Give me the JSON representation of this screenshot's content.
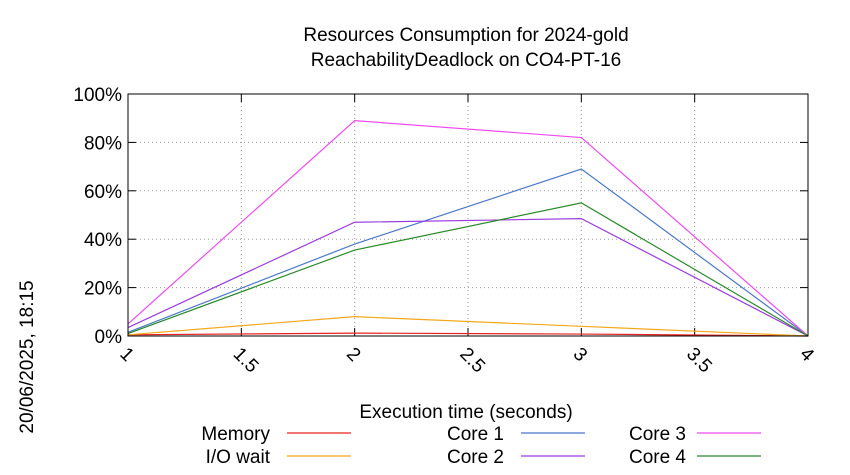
{
  "chart_data": {
    "type": "line",
    "title": "Resources Consumption for 2024-gold",
    "subtitle": "ReachabilityDeadlock on CO4-PT-16",
    "xlabel": "Execution time (seconds)",
    "ylabel": "",
    "side_label": "20/06/2025, 18:15",
    "xlim": [
      1,
      4
    ],
    "ylim": [
      0,
      100
    ],
    "x_ticks": [
      "1",
      "1.5",
      "2",
      "2.5",
      "3",
      "3.5",
      "4"
    ],
    "y_ticks": [
      "0%",
      "20%",
      "40%",
      "60%",
      "80%",
      "100%"
    ],
    "grid": true,
    "legend_position": "bottom",
    "x": [
      1,
      2,
      3,
      4
    ],
    "series": [
      {
        "name": "Memory",
        "color": "#e8231f",
        "values": [
          0.5,
          1.2,
          0.8,
          0
        ]
      },
      {
        "name": "I/O wait",
        "color": "#f4a81c",
        "values": [
          0.5,
          8,
          4,
          0
        ]
      },
      {
        "name": "Core 1",
        "color": "#4a78c8",
        "values": [
          1.5,
          38,
          69,
          0
        ]
      },
      {
        "name": "Core 2",
        "color": "#9b3ce0",
        "values": [
          3.5,
          47,
          48.5,
          0
        ]
      },
      {
        "name": "Core 3",
        "color": "#ee4cf0",
        "values": [
          5,
          89,
          82,
          0
        ]
      },
      {
        "name": "Core 4",
        "color": "#2a8a2a",
        "values": [
          1,
          35.5,
          55,
          0
        ]
      }
    ]
  }
}
